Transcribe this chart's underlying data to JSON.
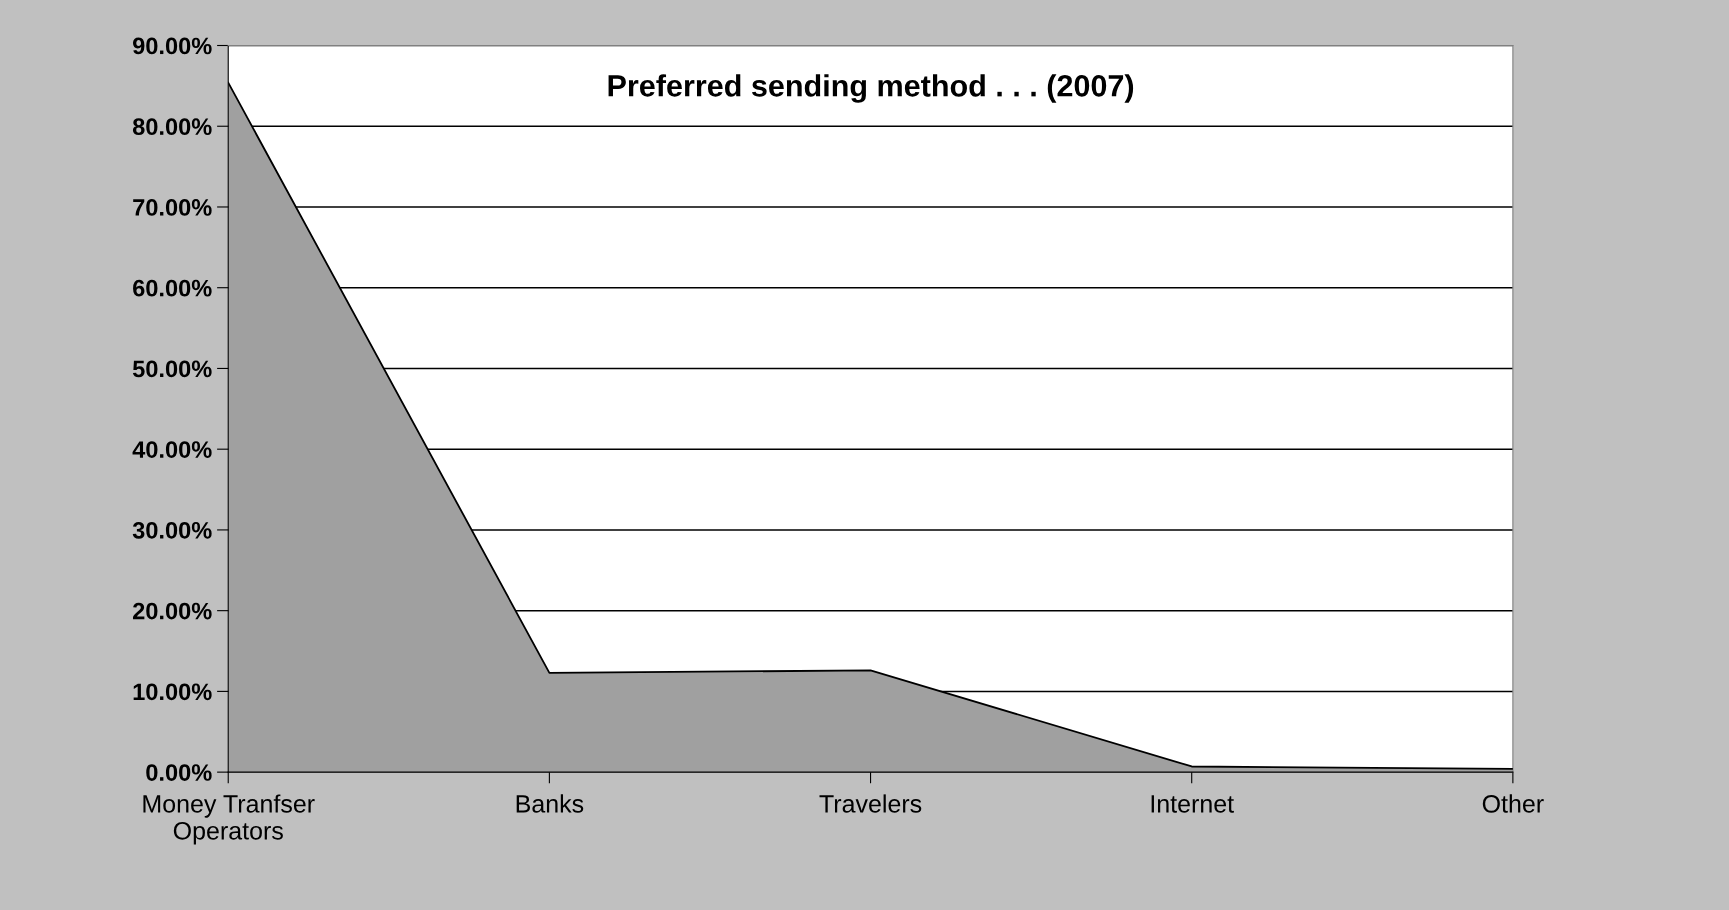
{
  "chart_data": {
    "type": "area",
    "title": "Preferred sending method . . . (2007)",
    "categories": [
      "Money Tranfser\nOperators",
      "Banks",
      "Travelers",
      "Internet",
      "Other"
    ],
    "series": [
      {
        "color": "#a0a0a0",
        "values": [
          85.4,
          12.3,
          12.6,
          0.7,
          0.4
        ]
      }
    ],
    "ylim": [
      0,
      90
    ],
    "yticks": [
      {
        "value": 0,
        "label": "0.00%"
      },
      {
        "value": 10,
        "label": "10.00%"
      },
      {
        "value": 20,
        "label": "20.00%"
      },
      {
        "value": 30,
        "label": "30.00%"
      },
      {
        "value": 40,
        "label": "40.00%"
      },
      {
        "value": 50,
        "label": "50.00%"
      },
      {
        "value": 60,
        "label": "60.00%"
      },
      {
        "value": 70,
        "label": "70.00%"
      },
      {
        "value": 80,
        "label": "80.00%"
      },
      {
        "value": 90,
        "label": "90.00%"
      }
    ],
    "grid": "y",
    "legend": false
  }
}
